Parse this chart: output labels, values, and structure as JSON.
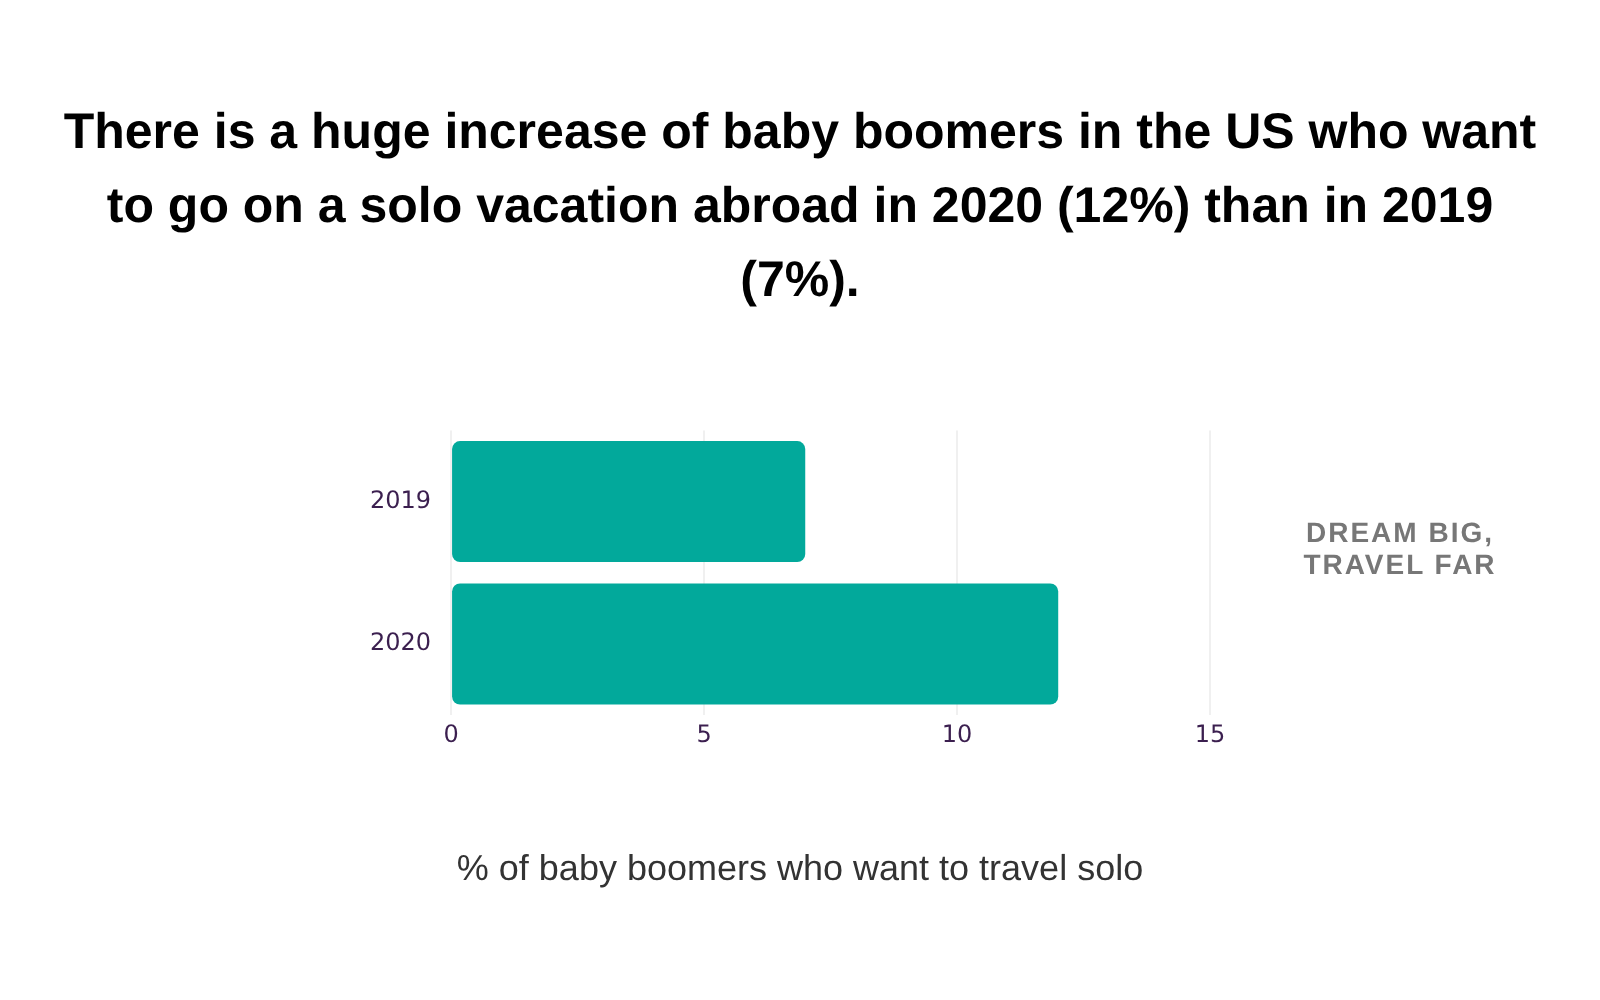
{
  "chart_data": {
    "type": "bar",
    "orientation": "horizontal",
    "title": "There is a huge increase of baby boomers in the US who want to go on a solo vacation abroad in 2020 (12%) than in 2019 (7%).",
    "xlabel": "% of baby boomers who want to travel solo",
    "categories": [
      "2019",
      "2020"
    ],
    "values": [
      7,
      12
    ],
    "color": "#02a99b",
    "xlim": [
      0,
      15
    ],
    "xticks": [
      0,
      5,
      10,
      15
    ],
    "grid": "x",
    "annotations": [
      "DREAM BIG, TRAVEL FAR"
    ]
  }
}
